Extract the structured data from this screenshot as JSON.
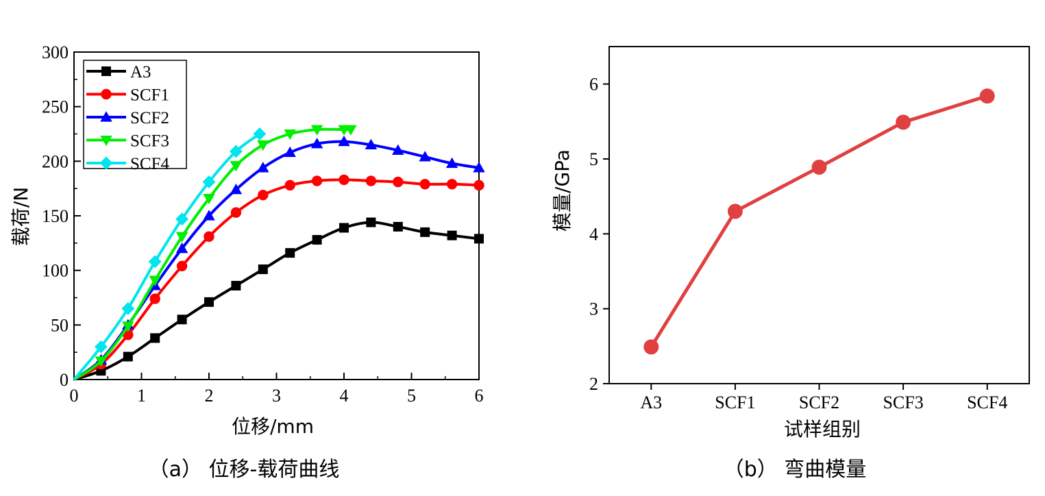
{
  "chart_data": [
    {
      "type": "line",
      "caption": "（a） 位移-载荷曲线",
      "xlabel": "位移/mm",
      "ylabel": "载荷/N",
      "xlim": [
        0,
        6
      ],
      "ylim": [
        0,
        300
      ],
      "xticks": [
        "0",
        "1",
        "2",
        "3",
        "4",
        "5",
        "6"
      ],
      "yticks": [
        "0",
        "50",
        "100",
        "150",
        "200",
        "250",
        "300"
      ],
      "grid": false,
      "legend_position": "top-left",
      "series": [
        {
          "name": "A3",
          "color": "#000000",
          "marker": "square",
          "x": [
            0,
            0.4,
            0.8,
            1.2,
            1.6,
            2.0,
            2.4,
            2.8,
            3.2,
            3.6,
            4.0,
            4.4,
            4.8,
            5.2,
            5.6,
            6.0
          ],
          "y": [
            0,
            8,
            21,
            38,
            55,
            71,
            86,
            101,
            116,
            128,
            139,
            144,
            140,
            135,
            132,
            129
          ]
        },
        {
          "name": "SCF1",
          "color": "#ff0000",
          "marker": "circle",
          "x": [
            0,
            0.4,
            0.8,
            1.2,
            1.6,
            2.0,
            2.4,
            2.8,
            3.2,
            3.6,
            4.0,
            4.4,
            4.8,
            5.2,
            5.6,
            6.0
          ],
          "y": [
            0,
            14,
            41,
            74,
            104,
            131,
            153,
            169,
            178,
            182,
            183,
            182,
            181,
            179,
            179,
            178
          ]
        },
        {
          "name": "SCF2",
          "color": "#0000ff",
          "marker": "triangle-up",
          "x": [
            0,
            0.4,
            0.8,
            1.2,
            1.6,
            2.0,
            2.4,
            2.8,
            3.2,
            3.6,
            4.0,
            4.4,
            4.8,
            5.2,
            5.6,
            6.0
          ],
          "y": [
            0,
            18,
            50,
            86,
            120,
            150,
            174,
            194,
            208,
            216,
            218,
            215,
            210,
            204,
            198,
            194
          ]
        },
        {
          "name": "SCF3",
          "color": "#00ee00",
          "marker": "triangle-down",
          "x": [
            0,
            0.4,
            0.8,
            1.2,
            1.6,
            2.0,
            2.4,
            2.8,
            3.2,
            3.6,
            4.0,
            4.1
          ],
          "y": [
            0,
            17,
            49,
            91,
            131,
            166,
            196,
            215,
            225,
            229,
            229,
            229
          ]
        },
        {
          "name": "SCF4",
          "color": "#00e5ee",
          "marker": "diamond",
          "x": [
            0,
            0.4,
            0.8,
            1.2,
            1.6,
            2.0,
            2.4,
            2.75
          ],
          "y": [
            0,
            30,
            65,
            108,
            147,
            181,
            209,
            225
          ]
        }
      ]
    },
    {
      "type": "line",
      "caption": "（b） 弯曲模量",
      "xlabel": "试样组别",
      "ylabel": "模量/GPa",
      "categories": [
        "A3",
        "SCF1",
        "SCF2",
        "SCF3",
        "SCF4"
      ],
      "ylim": [
        2,
        6.5
      ],
      "yticks": [
        "2",
        "3",
        "4",
        "5",
        "6"
      ],
      "grid": false,
      "series": [
        {
          "color": "#e04040",
          "marker": "circle",
          "values": [
            2.49,
            4.3,
            4.89,
            5.49,
            5.84
          ]
        }
      ]
    }
  ]
}
